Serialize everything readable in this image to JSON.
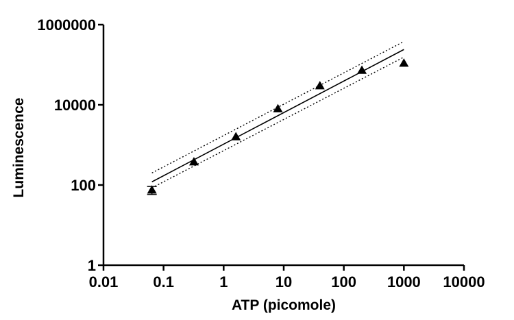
{
  "chart_data": {
    "type": "scatter",
    "title": "",
    "xlabel": "ATP (picomole)",
    "ylabel": "Luminescence",
    "x_scale": "log",
    "y_scale": "log",
    "xlim": [
      0.01,
      10000
    ],
    "ylim": [
      1,
      1000000
    ],
    "x_tick_labels": [
      "0.01",
      "0.1",
      "1",
      "10",
      "100",
      "1000",
      "10000"
    ],
    "y_tick_labels": [
      "1",
      "100",
      "10000",
      "1000000"
    ],
    "x_tick_values": [
      0.01,
      0.1,
      1,
      10,
      100,
      1000,
      10000
    ],
    "y_tick_values": [
      1,
      100,
      10000,
      1000000
    ],
    "grid": false,
    "legend": "none",
    "marker": "triangle",
    "series": [
      {
        "x": [
          0.064,
          0.32,
          1.6,
          8,
          40,
          200,
          1000
        ],
        "y": [
          75,
          380,
          1600,
          8000,
          30000,
          73000,
          110000
        ],
        "y_error": [
          [
            58,
            92
          ],
          null,
          null,
          null,
          null,
          null,
          null
        ]
      }
    ],
    "fit_line": {
      "x": [
        0.064,
        1000
      ],
      "y": [
        120,
        240000
      ]
    },
    "confidence_band_upper": {
      "x": [
        0.064,
        1000
      ],
      "y": [
        200,
        380000
      ]
    },
    "confidence_band_lower": {
      "x": [
        0.064,
        1000
      ],
      "y": [
        85,
        155000
      ]
    },
    "colors": {
      "marker": "#000000",
      "line": "#000000",
      "axis": "#000000"
    }
  }
}
